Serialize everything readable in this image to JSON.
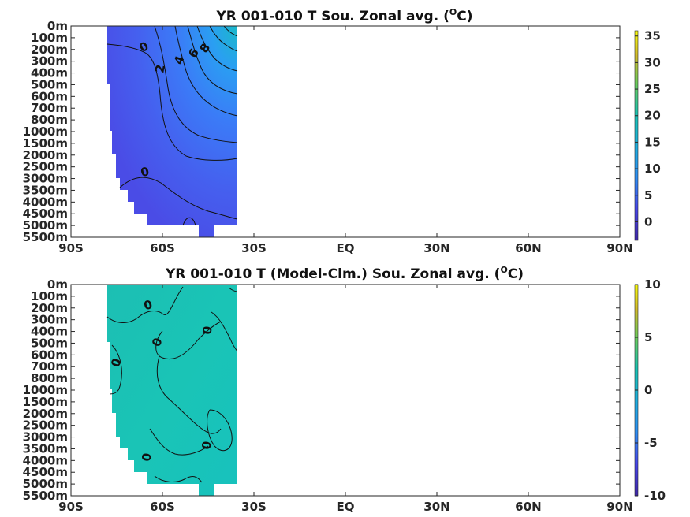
{
  "chart_data": [
    {
      "type": "heatmap",
      "title": "YR 001-010 T Sou. Zonal avg. (",
      "title_unit": "O",
      "title_unit_suffix": "C)",
      "x_ticks": [
        "90S",
        "60S",
        "30S",
        "EQ",
        "30N",
        "60N",
        "90N"
      ],
      "x_values": [
        -90,
        -60,
        -30,
        0,
        30,
        60,
        90
      ],
      "y_ticks": [
        "0m",
        "100m",
        "200m",
        "300m",
        "400m",
        "500m",
        "600m",
        "700m",
        "800m",
        "1000m",
        "1500m",
        "2000m",
        "2500m",
        "3000m",
        "3500m",
        "4000m",
        "4500m",
        "5000m",
        "5500m"
      ],
      "y_values": [
        0,
        100,
        200,
        300,
        400,
        500,
        600,
        700,
        800,
        1000,
        1500,
        2000,
        2500,
        3000,
        3500,
        4000,
        4500,
        5000,
        5500
      ],
      "data_lat_range": [
        -78,
        -34
      ],
      "colorbar": {
        "min": -3.5,
        "max": 36,
        "ticks": [
          "35",
          "30",
          "25",
          "20",
          "15",
          "10",
          "5",
          "0"
        ],
        "tick_values": [
          35,
          30,
          25,
          20,
          15,
          10,
          5,
          0
        ]
      },
      "contour_labels": [
        "0",
        "2",
        "4",
        "6",
        "8",
        "0"
      ],
      "colormap": "parula"
    },
    {
      "type": "heatmap",
      "title": "YR 001-010 T (Model-Clm.) Sou. Zonal avg. (",
      "title_unit": "O",
      "title_unit_suffix": "C)",
      "x_ticks": [
        "90S",
        "60S",
        "30S",
        "EQ",
        "30N",
        "60N",
        "90N"
      ],
      "x_values": [
        -90,
        -60,
        -30,
        0,
        30,
        60,
        90
      ],
      "y_ticks": [
        "0m",
        "100m",
        "200m",
        "300m",
        "400m",
        "500m",
        "600m",
        "700m",
        "800m",
        "1000m",
        "1500m",
        "2000m",
        "2500m",
        "3000m",
        "3500m",
        "4000m",
        "4500m",
        "5000m",
        "5500m"
      ],
      "y_values": [
        0,
        100,
        200,
        300,
        400,
        500,
        600,
        700,
        800,
        1000,
        1500,
        2000,
        2500,
        3000,
        3500,
        4000,
        4500,
        5000,
        5500
      ],
      "data_lat_range": [
        -78,
        -34
      ],
      "colorbar": {
        "min": -10,
        "max": 10,
        "ticks": [
          "10",
          "5",
          "0",
          "-5",
          "-10"
        ],
        "tick_values": [
          10,
          5,
          0,
          -5,
          -10
        ]
      },
      "contour_labels": [
        "0",
        "0",
        "0",
        "0",
        "0",
        "0"
      ],
      "colormap": "parula"
    }
  ]
}
